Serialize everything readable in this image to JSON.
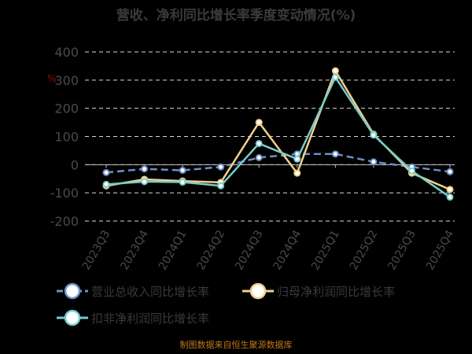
{
  "chart_data": {
    "type": "line",
    "title": "营收、净利同比增长率季度变动情况(%)",
    "unit_label": "%",
    "categories": [
      "2023Q3",
      "2023Q4",
      "2024Q1",
      "2024Q2",
      "2024Q3",
      "2024Q4",
      "2025Q1",
      "2025Q2",
      "2025Q3",
      "2025Q4"
    ],
    "ylim": [
      -200,
      400
    ],
    "yticks": [
      -200,
      -100,
      0,
      100,
      200,
      300,
      400
    ],
    "grid": true,
    "legend_position": "bottom",
    "series": [
      {
        "name": "营业总收入同比增长率",
        "color": "#6e8fc8",
        "dashed": true,
        "values": [
          -28,
          -15,
          -20,
          -8,
          25,
          38,
          38,
          10,
          -8,
          -25
        ]
      },
      {
        "name": "归母净利润同比增长率",
        "color": "#f2d08a",
        "dashed": false,
        "values": [
          -75,
          -52,
          -58,
          -63,
          150,
          -30,
          333,
          108,
          -30,
          -88
        ]
      },
      {
        "name": "扣非净利润同比增长率",
        "color": "#78cccb",
        "dashed": false,
        "values": [
          -70,
          -60,
          -62,
          -75,
          75,
          20,
          310,
          105,
          -22,
          -115
        ]
      }
    ]
  },
  "source": "制图数据来自恒生聚源数据库"
}
